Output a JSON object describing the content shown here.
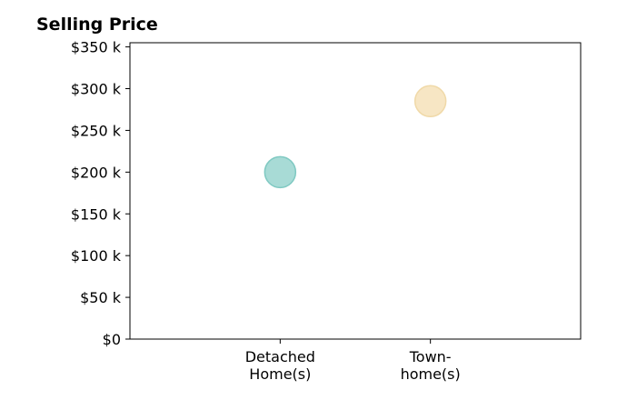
{
  "chart_data": {
    "type": "scatter",
    "title": "Selling Price",
    "xlabel": "",
    "ylabel": "",
    "categories": [
      [
        "Detached",
        "Home(s)"
      ],
      [
        "Town-",
        "home(s)"
      ]
    ],
    "x": [
      1,
      2
    ],
    "xlim": [
      0,
      3
    ],
    "values": [
      200000,
      285000
    ],
    "point_colors": [
      "#a8dbd6",
      "#f7e6c4"
    ],
    "point_stroke_colors": [
      "#7fc9c2",
      "#f0d9a8"
    ],
    "ylim": [
      0,
      355000
    ],
    "yticks": [
      {
        "value": 0,
        "label": "$0"
      },
      {
        "value": 50000,
        "label": "$50 k"
      },
      {
        "value": 100000,
        "label": "$100 k"
      },
      {
        "value": 150000,
        "label": "$150 k"
      },
      {
        "value": 200000,
        "label": "$200 k"
      },
      {
        "value": 250000,
        "label": "$250 k"
      },
      {
        "value": 300000,
        "label": "$300 k"
      },
      {
        "value": 350000,
        "label": "$350 k"
      }
    ],
    "grid": false,
    "legend": "none"
  }
}
